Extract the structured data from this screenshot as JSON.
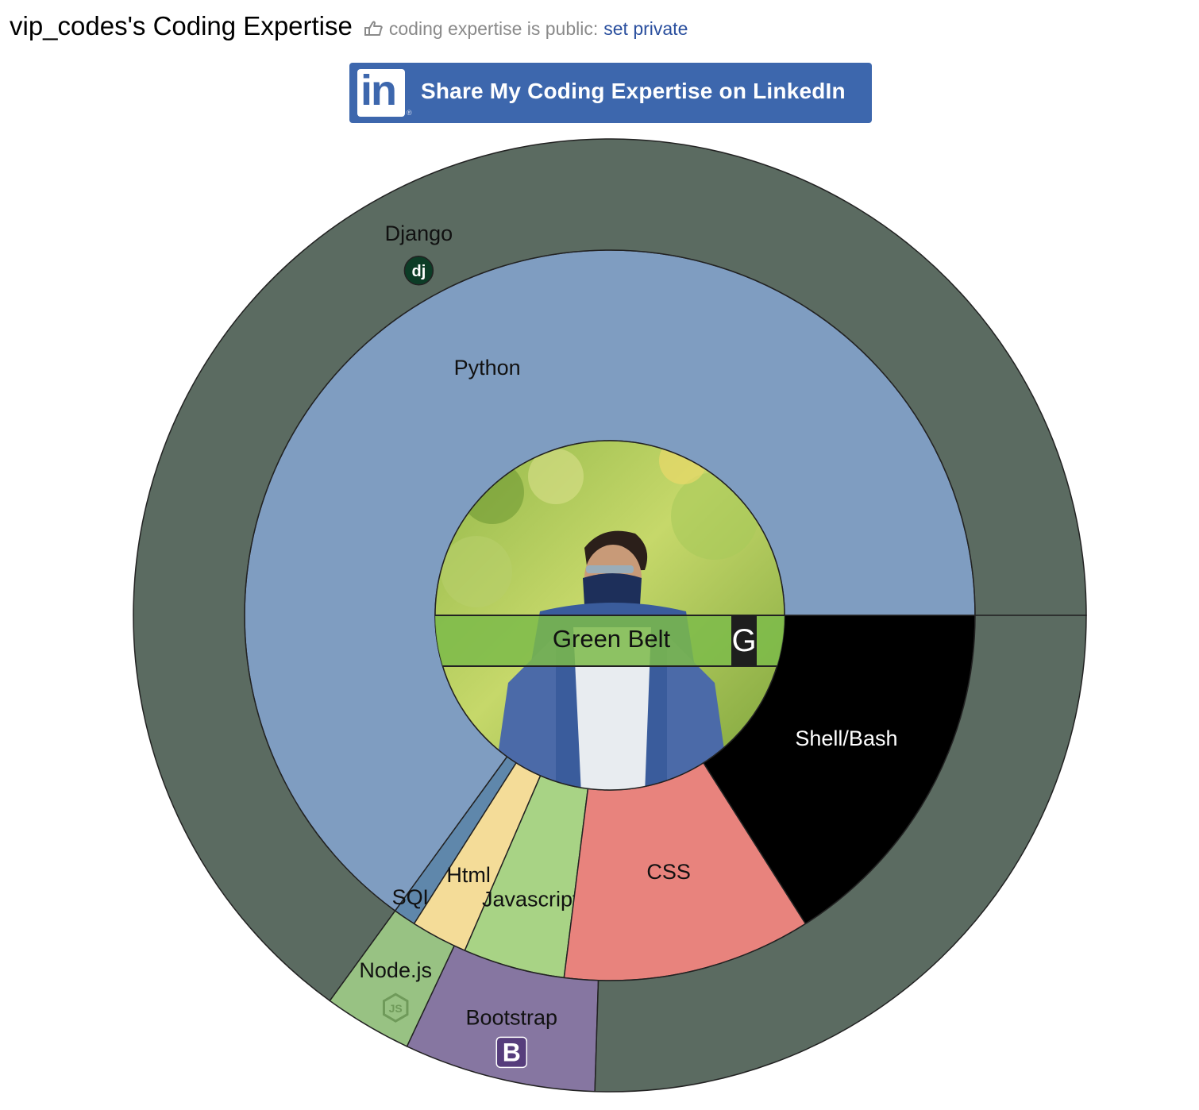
{
  "header": {
    "title": "vip_codes's Coding Expertise",
    "privacy_text": "coding expertise is public:",
    "set_private_label": "set private"
  },
  "linkedin": {
    "button_label": "Share My Coding Expertise on LinkedIn",
    "logo_text": "in",
    "registered_mark": "®"
  },
  "colors": {
    "linkedin_blue": "#3d67ad",
    "link_blue": "#2a4f9e",
    "outer_ring": "#5b6b61",
    "belt_green": "#7dbb4a"
  },
  "chart_data": {
    "type": "sunburst",
    "center": {
      "badge_label": "Green Belt",
      "badge_letter": "G",
      "image": "profile-photo"
    },
    "inner_ring": [
      {
        "label": "Python",
        "value": 65.0,
        "color": "#7f9dc1",
        "text_color": "#111111"
      },
      {
        "label": "SQL",
        "value": 1.0,
        "color": "#5f87ab",
        "text_color": "#111111"
      },
      {
        "label": "Html",
        "value": 2.5,
        "color": "#f4dc98",
        "text_color": "#111111"
      },
      {
        "label": "Javascript",
        "value": 4.5,
        "color": "#a8d385",
        "text_color": "#111111"
      },
      {
        "label": "CSS",
        "value": 11.0,
        "color": "#e8837d",
        "text_color": "#111111"
      },
      {
        "label": "Shell/Bash",
        "value": 16.0,
        "color": "#000000",
        "text_color": "#ffffff"
      }
    ],
    "outer_ring": [
      {
        "label": "Django",
        "parent": "Python",
        "value": 65.0,
        "color": "#5b6b61",
        "text_color": "#111111",
        "icon": "django-icon"
      },
      {
        "label": "Node.js",
        "parent": "SQL/Html",
        "value": 3.0,
        "color": "#98c283",
        "text_color": "#111111",
        "icon": "nodejs-icon"
      },
      {
        "label": "Bootstrap",
        "parent": "Javascript",
        "value": 6.5,
        "color": "#8676a1",
        "text_color": "#111111",
        "icon": "bootstrap-icon"
      },
      {
        "label": "",
        "parent": "CSS/Shell",
        "value": 25.5,
        "color": "#5b6b61",
        "text_color": "#111111",
        "icon": ""
      }
    ],
    "icon_labels": {
      "django": "dj",
      "bootstrap": "B",
      "nodejs": "JS"
    }
  }
}
